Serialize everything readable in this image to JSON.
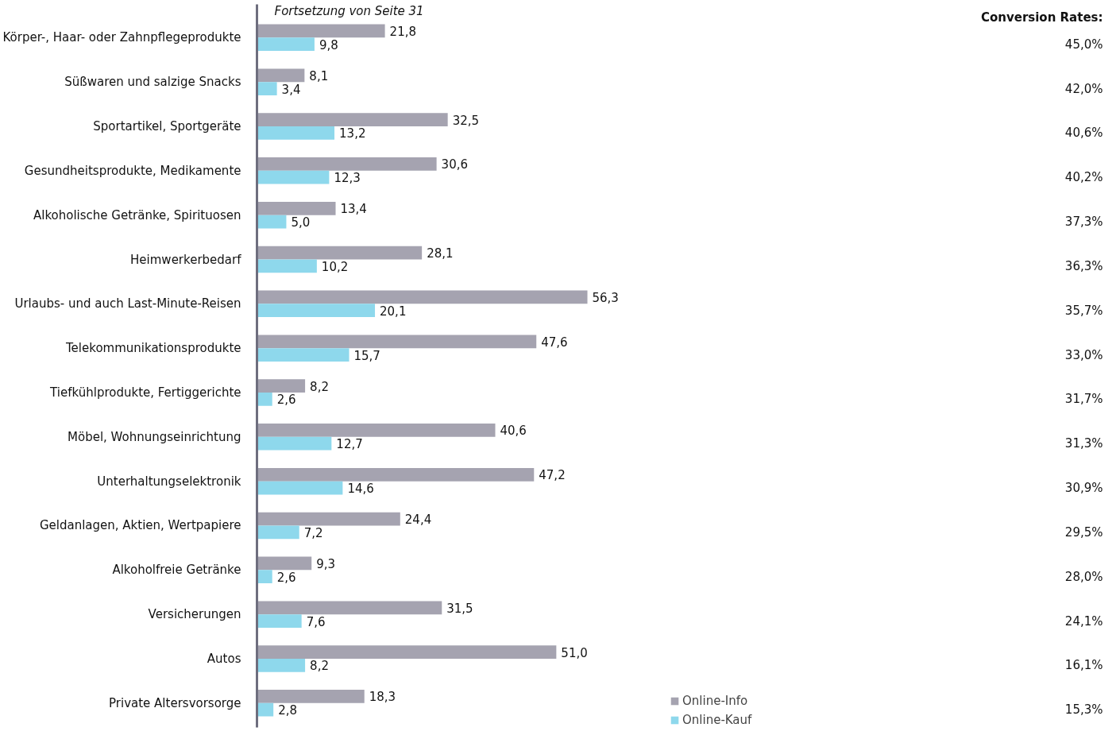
{
  "chart_data": {
    "type": "bar",
    "orientation": "horizontal",
    "subtitle": "Fortsetzung von Seite 31",
    "categories": [
      "Körper-, Haar- oder Zahnpflegeprodukte",
      "Süßwaren und salzige Snacks",
      "Sportartikel, Sportgeräte",
      "Gesundheitsprodukte, Medikamente",
      "Alkoholische Getränke, Spirituosen",
      "Heimwerkerbedarf",
      "Urlaubs- und auch Last-Minute-Reisen",
      "Telekommunikationsprodukte",
      "Tiefkühlprodukte, Fertiggerichte",
      "Möbel, Wohnungseinrichtung",
      "Unterhaltungselektronik",
      "Geldanlagen, Aktien, Wertpapiere",
      "Alkoholfreie Getränke",
      "Versicherungen",
      "Autos",
      "Private Altersvorsorge"
    ],
    "series": [
      {
        "name": "Online-Info",
        "color": "#a5a3b0",
        "values": [
          21.8,
          8.1,
          32.5,
          30.6,
          13.4,
          28.1,
          56.3,
          47.6,
          8.2,
          40.6,
          47.2,
          24.4,
          9.3,
          31.5,
          51.0,
          18.3
        ],
        "value_labels": [
          "21,8",
          "8,1",
          "32,5",
          "30,6",
          "13,4",
          "28,1",
          "56,3",
          "47,6",
          "8,2",
          "40,6",
          "47,2",
          "24,4",
          "9,3",
          "31,5",
          "51,0",
          "18,3"
        ]
      },
      {
        "name": "Online-Kauf",
        "color": "#8ed8ec",
        "values": [
          9.8,
          3.4,
          13.2,
          12.3,
          5.0,
          10.2,
          20.1,
          15.7,
          2.6,
          12.7,
          14.6,
          7.2,
          2.6,
          7.6,
          8.2,
          2.8
        ],
        "value_labels": [
          "9,8",
          "3,4",
          "13,2",
          "12,3",
          "5,0",
          "10,2",
          "20,1",
          "15,7",
          "2,6",
          "12,7",
          "14,6",
          "7,2",
          "2,6",
          "7,6",
          "8,2",
          "2,8"
        ]
      }
    ],
    "annotations": [
      "Conversion Rates:",
      "45,0%",
      "42,0%",
      "40,6%",
      "40,2%",
      "37,3%",
      "36,3%",
      "35,7%",
      "33,0%",
      "31,7%",
      "31,3%",
      "30,9%",
      "29,5%",
      "28,0%",
      "24,1%",
      "16,1%",
      "15,3%"
    ],
    "grid": false,
    "legend": "bottom right",
    "tick_labels": "y"
  }
}
